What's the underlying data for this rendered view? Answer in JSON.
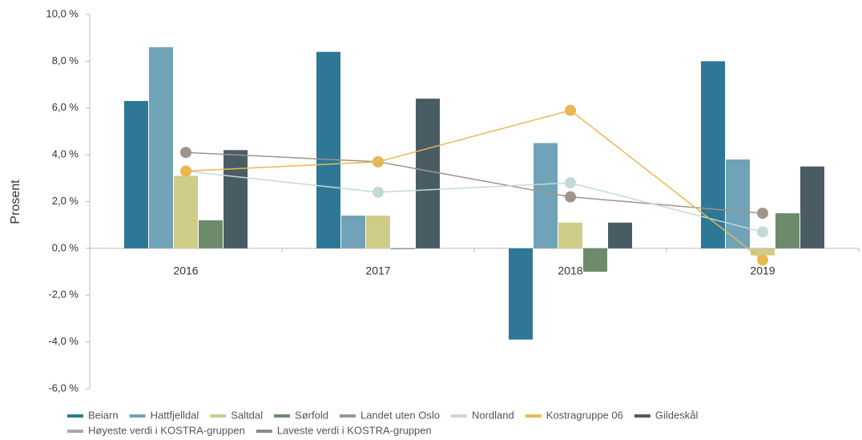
{
  "chart_data": {
    "type": "bar",
    "y_label": "Prosent",
    "categories": [
      "2016",
      "2017",
      "2018",
      "2019"
    ],
    "ylim": [
      -6,
      10
    ],
    "yticks": [
      {
        "value": -6,
        "label": "-6,0 %"
      },
      {
        "value": -4,
        "label": "-4,0 %"
      },
      {
        "value": -2,
        "label": "-2,0 %"
      },
      {
        "value": 0,
        "label": "0,0 %"
      },
      {
        "value": 2,
        "label": "2,0 %"
      },
      {
        "value": 4,
        "label": "4,0 %"
      },
      {
        "value": 6,
        "label": "6,0 %"
      },
      {
        "value": 8,
        "label": "8,0 %"
      },
      {
        "value": 10,
        "label": "10,0 %"
      }
    ],
    "series": [
      {
        "name": "Beiarn",
        "type": "bar",
        "color": "#2e7797",
        "values": [
          6.3,
          8.4,
          -3.9,
          8.0
        ]
      },
      {
        "name": "Hattfjelldal",
        "type": "bar",
        "color": "#70a3b8",
        "values": [
          8.6,
          1.4,
          4.5,
          3.8
        ]
      },
      {
        "name": "Saltdal",
        "type": "bar",
        "color": "#cfcc8a",
        "values": [
          3.1,
          1.4,
          1.1,
          -0.3
        ]
      },
      {
        "name": "Sørfold",
        "type": "bar",
        "color": "#6e8a6c",
        "values": [
          1.2,
          0.0,
          -1.0,
          1.5
        ]
      },
      {
        "name": "Landet uten Oslo",
        "type": "line",
        "color": "#a0958c",
        "values": [
          4.1,
          3.7,
          2.2,
          1.5
        ]
      },
      {
        "name": "Nordland",
        "type": "line",
        "color": "#c3dadb",
        "values": [
          3.3,
          2.4,
          2.8,
          0.7
        ]
      },
      {
        "name": "Kostragruppe 06",
        "type": "line",
        "color": "#e8b953",
        "values": [
          3.3,
          3.7,
          5.9,
          -0.5
        ]
      },
      {
        "name": "Gildeskål",
        "type": "bar",
        "color": "#4a5c63",
        "values": [
          4.2,
          6.4,
          1.1,
          3.5
        ]
      },
      {
        "name": "Høyeste verdi i KOSTRA-gruppen",
        "type": "line",
        "color": "#a6a6a6",
        "values": [
          null,
          null,
          null,
          null
        ]
      },
      {
        "name": "Laveste verdi i KOSTRA-gruppen",
        "type": "line",
        "color": "#8c8c8c",
        "values": [
          null,
          null,
          null,
          null
        ]
      }
    ]
  }
}
